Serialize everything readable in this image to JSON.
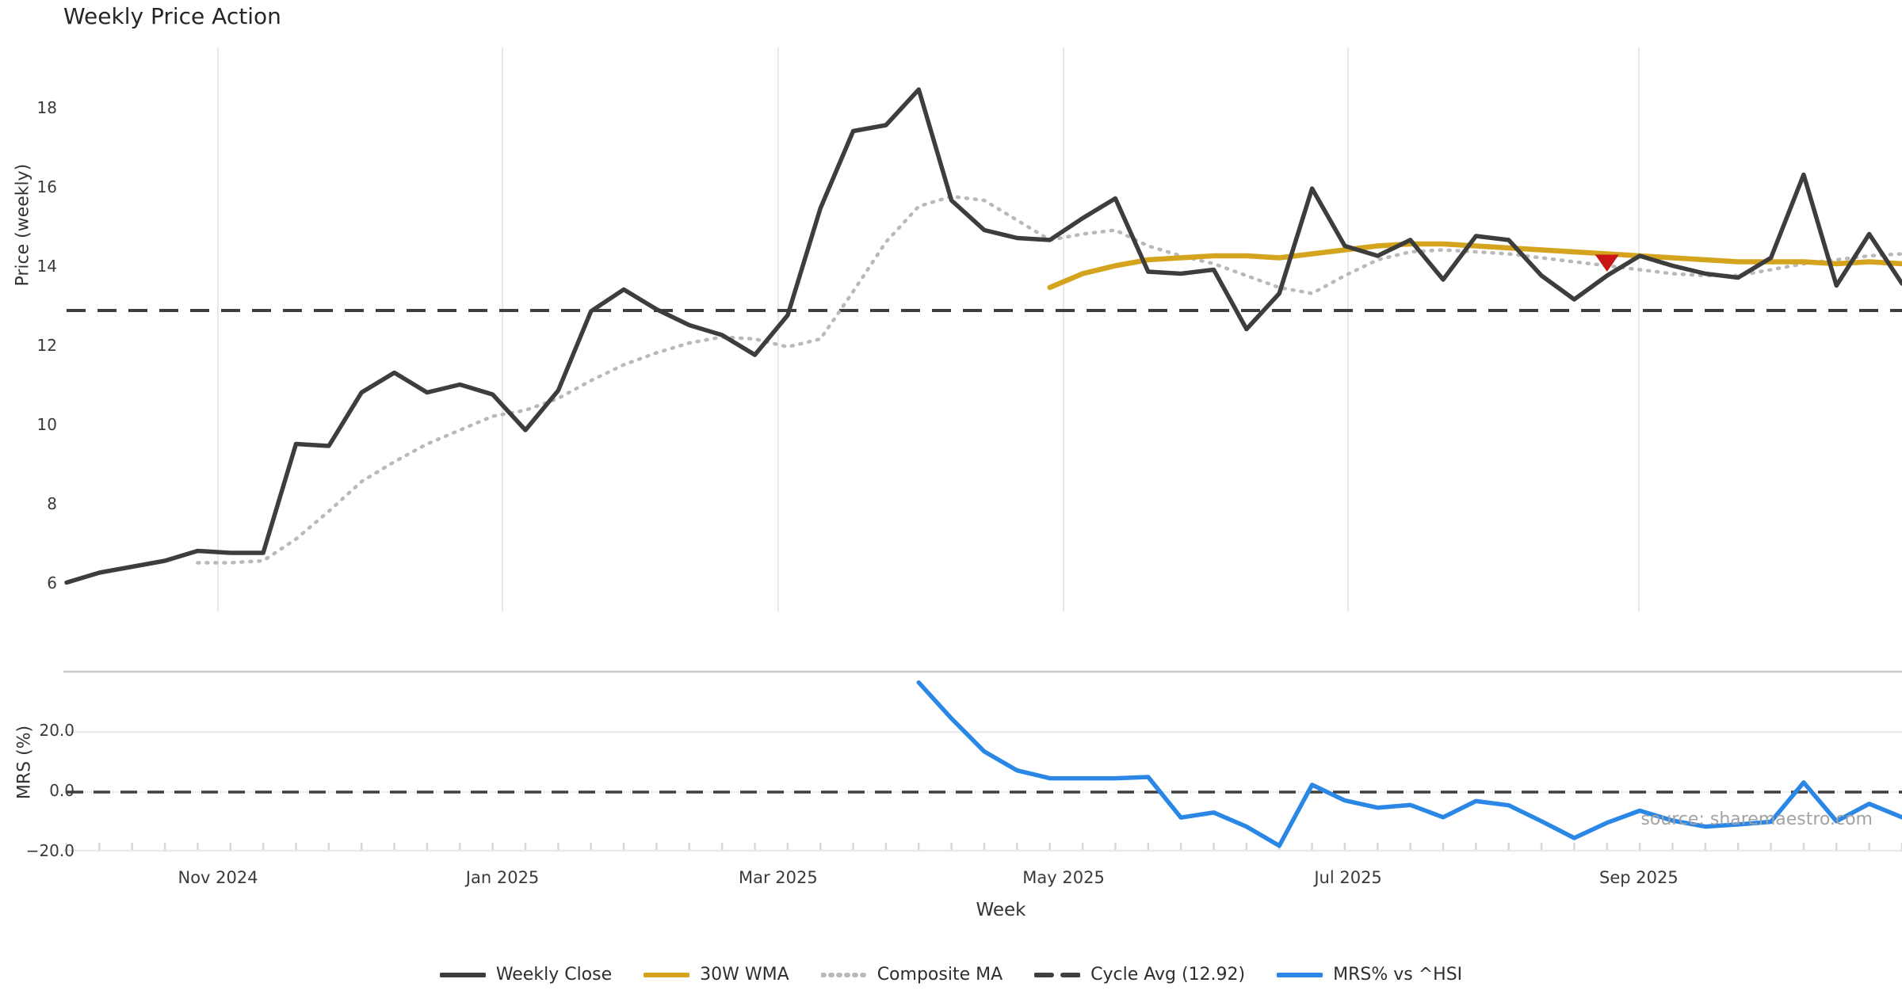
{
  "title": "Weekly Price Action",
  "watermark": "source: sharemaestro.com",
  "colors": {
    "weekly_close": "#3d3d3d",
    "wma_30w": "#d5a41e",
    "composite_ma": "#b9b9b9",
    "cycle_avg": "#3f3f3f",
    "mrs": "#2b87e6",
    "marker_red": "#c81616",
    "gridline": "#e9e9e9",
    "spine": "#c9c9c9",
    "tick_nub": "#d8d8d8"
  },
  "legend": [
    {
      "label": "Weekly Close",
      "style": "solid",
      "color": "#3d3d3d"
    },
    {
      "label": "30W WMA",
      "style": "solid",
      "color": "#d5a41e"
    },
    {
      "label": "Composite MA",
      "style": "dotted",
      "color": "#b9b9b9"
    },
    {
      "label": "Cycle Avg (12.92)",
      "style": "dashed",
      "color": "#3f3f3f"
    },
    {
      "label": "MRS% vs ^HSI",
      "style": "solid",
      "color": "#2b87e6"
    }
  ],
  "chart_data": {
    "type": "line",
    "x_axis": {
      "label": "Week",
      "month_ticks": [
        {
          "label": "Nov 2024",
          "week": 4.62
        },
        {
          "label": "Jan 2025",
          "week": 13.3
        },
        {
          "label": "Mar 2025",
          "week": 21.71
        },
        {
          "label": "May 2025",
          "week": 30.42
        },
        {
          "label": "Jul 2025",
          "week": 39.1
        },
        {
          "label": "Sep 2025",
          "week": 47.97
        }
      ],
      "weeks_total": 57
    },
    "price_panel": {
      "ylabel": "Price (weekly)",
      "ylim": [
        5.3,
        19.6
      ],
      "yticks": [
        "18",
        "16",
        "14",
        "12",
        "10",
        "8",
        "6"
      ],
      "ytick_values": [
        18,
        16,
        14,
        12,
        10,
        8,
        6
      ],
      "cycle_avg": 12.92,
      "series": [
        {
          "name": "Weekly Close",
          "start_week": 0,
          "values": [
            6.05,
            6.3,
            6.45,
            6.6,
            6.85,
            6.8,
            6.8,
            9.55,
            9.5,
            10.85,
            11.35,
            10.85,
            11.05,
            10.8,
            9.9,
            10.9,
            12.9,
            13.45,
            12.95,
            12.55,
            12.3,
            11.8,
            12.8,
            15.5,
            17.45,
            17.6,
            18.5,
            15.7,
            14.95,
            14.75,
            14.7,
            15.25,
            15.75,
            13.9,
            13.85,
            13.95,
            12.45,
            13.35,
            16.0,
            14.55,
            14.3,
            14.7,
            13.7,
            14.8,
            14.7,
            13.8,
            13.2,
            13.8,
            14.3,
            14.05,
            13.85,
            13.75,
            14.25,
            16.35,
            13.55,
            14.85,
            13.6
          ]
        },
        {
          "name": "Composite MA",
          "start_week": 4,
          "values": [
            6.55,
            6.55,
            6.6,
            7.15,
            7.85,
            8.6,
            9.1,
            9.55,
            9.9,
            10.25,
            10.4,
            10.7,
            11.15,
            11.55,
            11.85,
            12.1,
            12.25,
            12.2,
            12.0,
            12.2,
            13.4,
            14.65,
            15.55,
            15.8,
            15.7,
            15.2,
            14.7,
            14.85,
            14.95,
            14.55,
            14.3,
            14.1,
            13.8,
            13.5,
            13.35,
            13.8,
            14.2,
            14.4,
            14.45,
            14.4,
            14.35,
            14.25,
            14.15,
            14.05,
            13.95,
            13.85,
            13.8,
            13.8,
            13.95,
            14.1,
            14.2,
            14.3,
            14.35
          ]
        },
        {
          "name": "30W WMA",
          "start_week": 30,
          "values": [
            13.5,
            13.85,
            14.05,
            14.2,
            14.25,
            14.3,
            14.3,
            14.25,
            14.35,
            14.45,
            14.55,
            14.6,
            14.6,
            14.55,
            14.5,
            14.45,
            14.4,
            14.35,
            14.3,
            14.25,
            14.2,
            14.15,
            14.15,
            14.15,
            14.1,
            14.15,
            14.1
          ]
        }
      ],
      "marker": {
        "type": "sell-triangle-down",
        "week": 47,
        "price_top": 14.33,
        "price_apex": 13.9
      }
    },
    "mrs_panel": {
      "ylabel": "MRS (%)",
      "ylim": [
        -20,
        40
      ],
      "yticks": [
        "20.0",
        "0.0",
        "−20.0"
      ],
      "ytick_values": [
        20,
        0,
        -20
      ],
      "zero_line": 0,
      "series": [
        {
          "name": "MRS% vs ^HSI",
          "start_week": 26,
          "values": [
            36.5,
            24.5,
            13.5,
            7.2,
            4.6,
            4.6,
            4.6,
            5.0,
            -8.5,
            -6.8,
            -11.5,
            -17.9,
            2.4,
            -2.8,
            -5.2,
            -4.3,
            -8.4,
            -3.0,
            -4.4,
            -9.7,
            -15.3,
            -10.2,
            -6.2,
            -9.5,
            -11.5,
            -10.8,
            -9.9,
            3.2,
            -9.7,
            -3.9,
            -8.4
          ]
        }
      ]
    }
  }
}
